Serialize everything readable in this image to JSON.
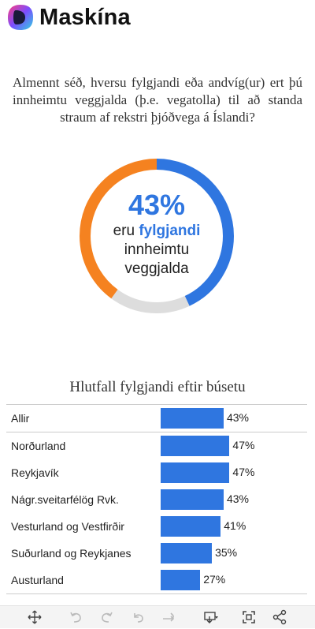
{
  "brand": {
    "name": "Maskína"
  },
  "question": "Almennt séð, hversu fylgjandi eða andvíg(ur) ert þú innheimtu veggjalda (þ.e. vegatolla) til að standa straum af rekstri þjóðvega á Íslandi?",
  "donut": {
    "percent_label": "43%",
    "line1_prefix": "eru ",
    "line1_highlight": "fylgjandi",
    "line2": "innheimtu",
    "line3": "veggjalda",
    "segments": [
      {
        "value": 43,
        "color": "#2f76e0"
      },
      {
        "value": 17,
        "color": "#dddddd"
      },
      {
        "value": 40,
        "color": "#f58220"
      }
    ]
  },
  "chart_data": {
    "type": "bar",
    "title": "Hlutfall fylgjandi eftir búsetu",
    "categories": [
      "Allir",
      "Norðurland",
      "Reykjavík",
      "Nágr.sveitarfélög Rvk.",
      "Vesturland og Vestfirðir",
      "Suðurland og Reykjanes",
      "Austurland"
    ],
    "values": [
      43,
      47,
      47,
      43,
      41,
      35,
      27
    ],
    "value_labels": [
      "43%",
      "47%",
      "47%",
      "43%",
      "41%",
      "35%",
      "27%"
    ],
    "xlim": [
      0,
      100
    ],
    "bar_color": "#2f76e0"
  },
  "toolbar": {
    "icons": [
      "move-icon",
      "undo-icon",
      "redo-icon",
      "revert-icon",
      "forward-icon",
      "download-icon",
      "fullscreen-icon",
      "share-icon"
    ]
  }
}
